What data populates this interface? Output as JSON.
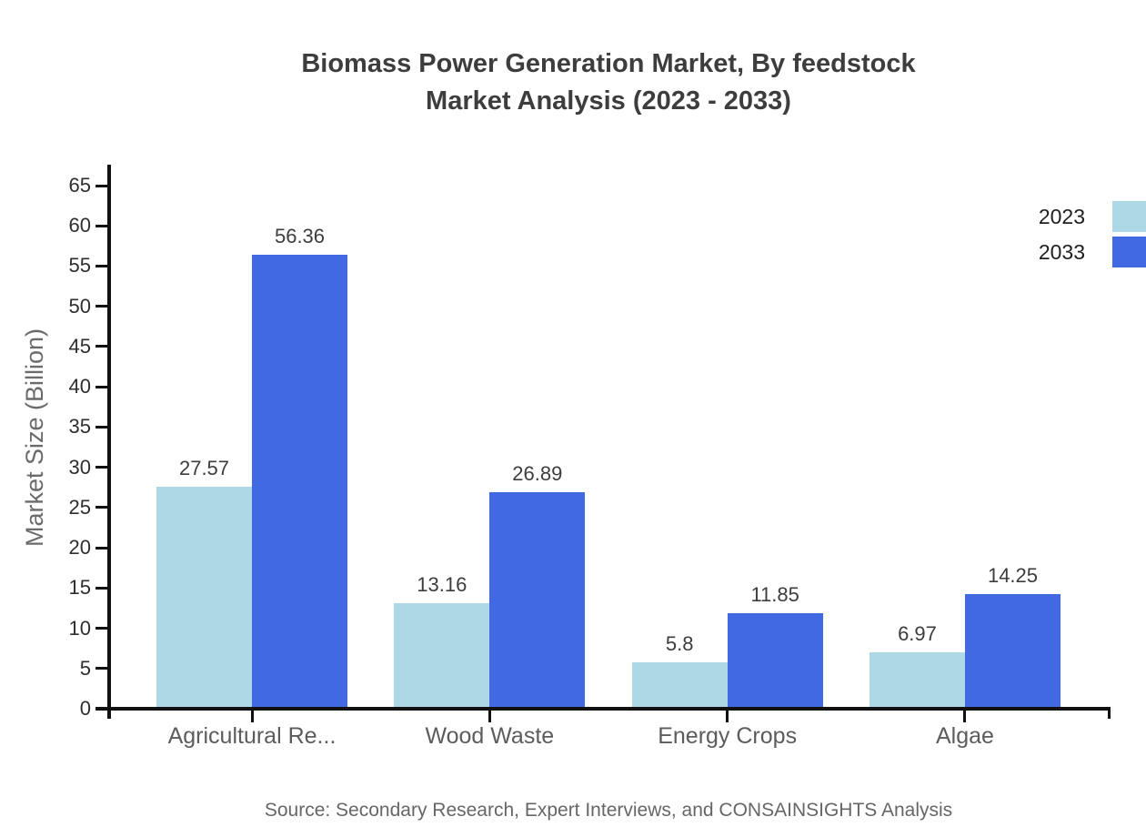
{
  "title": {
    "line1": "Biomass Power Generation Market, By feedstock",
    "line2": "Market Analysis (2023 - 2033)"
  },
  "source": "Source: Secondary Research, Expert Interviews, and CONSAINSIGHTS Analysis",
  "colors": {
    "series_2023": "#ADD8E6",
    "series_2033": "#4169E1",
    "title_text": "#3d3d3d",
    "axis_line": "#111111",
    "axis_label_text": "#5c5c5c",
    "background": "#ffffff"
  },
  "chart_data": {
    "type": "bar",
    "title": "Biomass Power Generation Market, By feedstock Market Analysis (2023 - 2033)",
    "categories": [
      "Agricultural Re...",
      "Wood Waste",
      "Energy Crops",
      "Algae"
    ],
    "series": [
      {
        "name": "2023",
        "color": "#ADD8E6",
        "values": [
          27.57,
          13.16,
          5.8,
          6.97
        ]
      },
      {
        "name": "2033",
        "color": "#4169E1",
        "values": [
          56.36,
          26.89,
          11.85,
          14.25
        ]
      }
    ],
    "xlabel": "",
    "ylabel": "Market Size (Billion)",
    "yticks": [
      0,
      5,
      10,
      15,
      20,
      25,
      30,
      35,
      40,
      45,
      50,
      55,
      60,
      65
    ],
    "ylim": [
      0,
      65
    ],
    "grid": false,
    "legend_position": "top-right",
    "value_labels_shown": true
  }
}
